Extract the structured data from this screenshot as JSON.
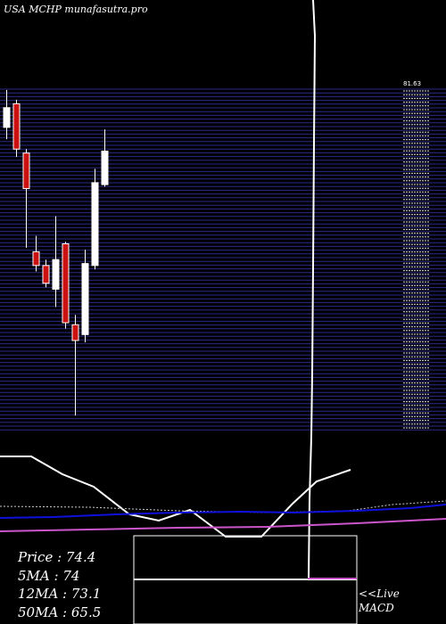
{
  "title": "USA MCHP munafasutra.pro",
  "stats": {
    "price": "Price   : 74.4",
    "ma5": "5MA : 74",
    "ma12": "12MA : 73.1",
    "ma50": "50MA : 65.5"
  },
  "live_label": "<<Live",
  "macd_label": "MACD",
  "colors": {
    "background": "#000000",
    "grid": "#2a2a8a",
    "up": "#ffffff",
    "down": "#cc1111",
    "ma_blue": "#1010dd",
    "ma_magenta": "#cc55cc",
    "white_line": "#ffffff"
  },
  "chart_data": {
    "type": "candlestick",
    "y_tick_top": "81.63",
    "candles": [
      {
        "open": 79.5,
        "close": 80.5,
        "high": 81.4,
        "low": 78.9
      },
      {
        "open": 80.7,
        "close": 78.4,
        "high": 80.9,
        "low": 78.0
      },
      {
        "open": 78.2,
        "close": 76.4,
        "high": 78.4,
        "low": 73.4
      },
      {
        "open": 73.2,
        "close": 72.5,
        "high": 74.0,
        "low": 72.2
      },
      {
        "open": 72.5,
        "close": 71.6,
        "high": 72.8,
        "low": 71.4
      },
      {
        "open": 71.3,
        "close": 72.8,
        "high": 75.0,
        "low": 70.4
      },
      {
        "open": 73.6,
        "close": 69.6,
        "high": 73.7,
        "low": 69.3
      },
      {
        "open": 69.5,
        "close": 68.7,
        "high": 70.0,
        "low": 64.9
      },
      {
        "open": 69.0,
        "close": 72.6,
        "high": 73.3,
        "low": 68.6
      },
      {
        "open": 72.5,
        "close": 76.7,
        "high": 77.4,
        "low": 72.3
      },
      {
        "open": 76.6,
        "close": 78.3,
        "high": 79.4,
        "low": 76.5
      }
    ]
  }
}
